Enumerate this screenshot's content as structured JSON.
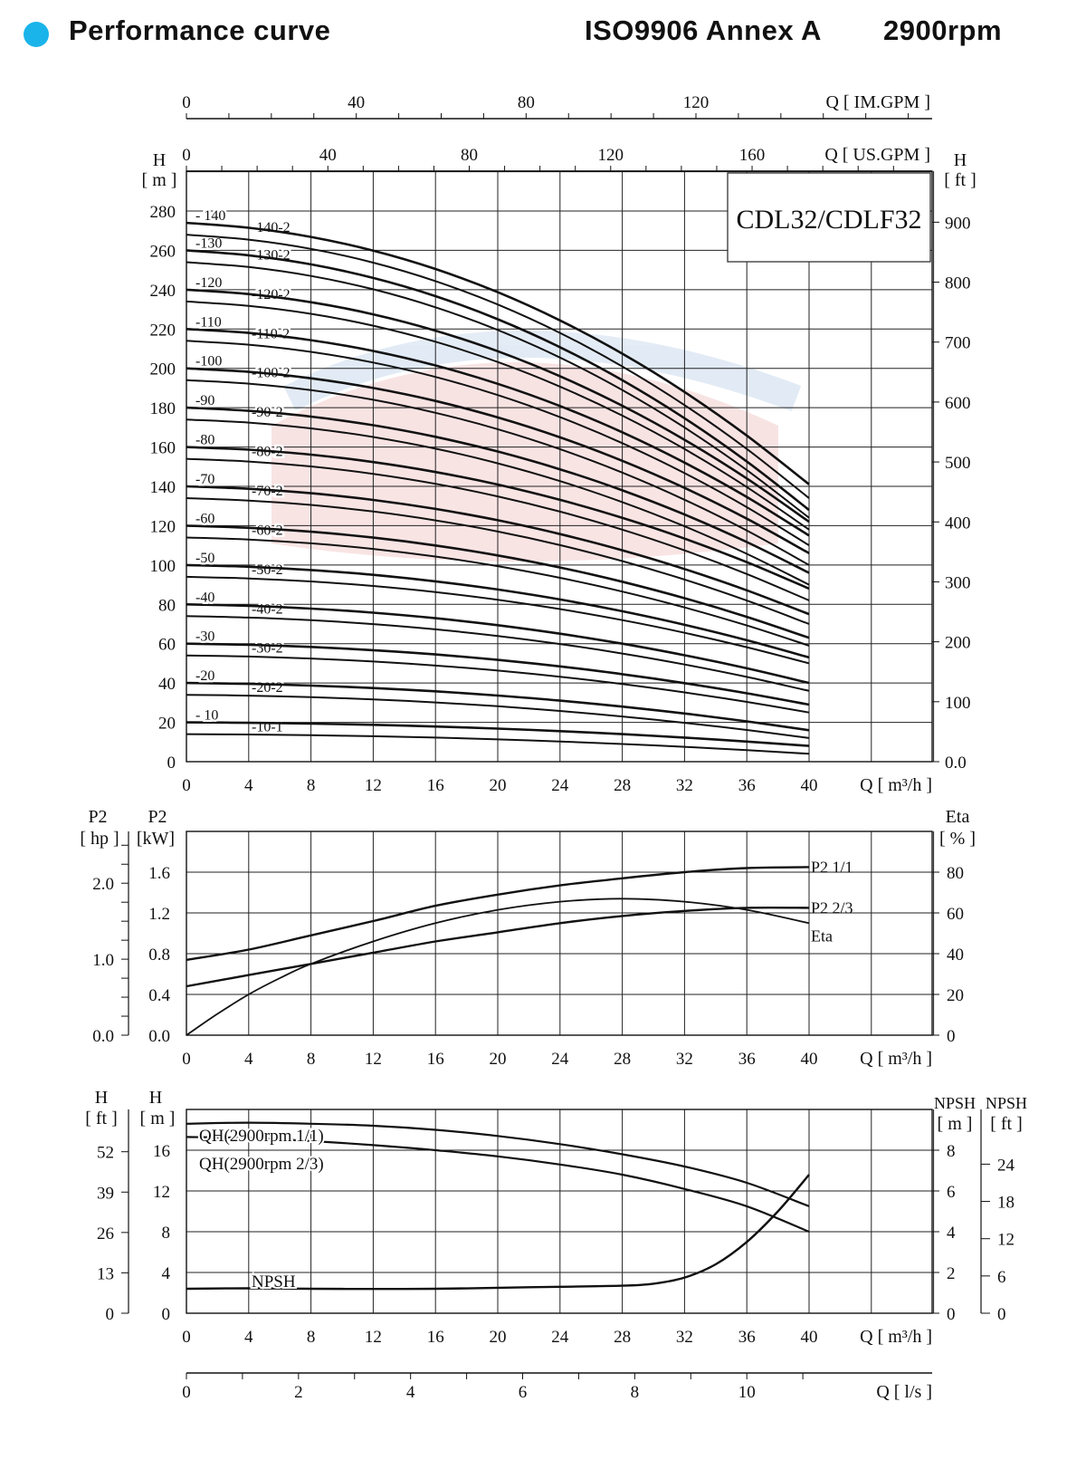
{
  "header": {
    "title": "Performance curve",
    "standard": "ISO9906 Annex A",
    "speed": "2900rpm",
    "dot_color": "#1ab4ea"
  },
  "model": "CDL32/CDLF32",
  "chart_data": [
    {
      "id": "head",
      "type": "line",
      "xlabel": "Q [ m³/h ]",
      "xlim": [
        0,
        40
      ],
      "x_ticks": [
        0,
        4,
        8,
        12,
        16,
        20,
        24,
        28,
        32,
        36,
        40
      ],
      "ylabel": "H [ m ]",
      "ylim": [
        0,
        280
      ],
      "y_ticks": [
        0,
        20,
        40,
        60,
        80,
        100,
        120,
        140,
        160,
        180,
        200,
        220,
        240,
        260,
        280
      ],
      "y_right_label": "H [ ft ]",
      "y_right_ticks": [
        "0.0",
        "100",
        "200",
        "300",
        "400",
        "500",
        "600",
        "700",
        "800",
        "900"
      ],
      "top_axis_us": {
        "label": "Q [ US.GPM ]",
        "ticks": [
          "0",
          "40",
          "80",
          "120",
          "160"
        ]
      },
      "top_axis_im": {
        "label": "Q [ IM.GPM ]",
        "ticks": [
          "0",
          "40",
          "80",
          "120"
        ]
      },
      "x": [
        0,
        4,
        8,
        12,
        16,
        20,
        24,
        28,
        32,
        36,
        40
      ],
      "curves": [
        {
          "label": "-10-1",
          "h0": 14,
          "h40": 4
        },
        {
          "label": "- 10",
          "h0": 20,
          "h40": 8
        },
        {
          "label": "-20-2",
          "h0": 34,
          "h40": 12
        },
        {
          "label": "-20",
          "h0": 40,
          "h40": 16
        },
        {
          "label": "-30-2",
          "h0": 54,
          "h40": 25
        },
        {
          "label": "-30",
          "h0": 60,
          "h40": 29
        },
        {
          "label": "-40-2",
          "h0": 74,
          "h40": 36
        },
        {
          "label": "-40",
          "h0": 80,
          "h40": 40
        },
        {
          "label": "-50-2",
          "h0": 94,
          "h40": 50
        },
        {
          "label": "-50",
          "h0": 100,
          "h40": 53
        },
        {
          "label": "-60-2",
          "h0": 114,
          "h40": 59
        },
        {
          "label": "-60",
          "h0": 120,
          "h40": 63
        },
        {
          "label": "-70-2",
          "h0": 134,
          "h40": 70
        },
        {
          "label": "-70",
          "h0": 140,
          "h40": 75
        },
        {
          "label": "-80-2",
          "h0": 154,
          "h40": 82
        },
        {
          "label": "-80",
          "h0": 160,
          "h40": 88
        },
        {
          "label": "-90-2",
          "h0": 174,
          "h40": 90
        },
        {
          "label": "-90",
          "h0": 180,
          "h40": 96
        },
        {
          "label": "-100-2",
          "h0": 194,
          "h40": 100
        },
        {
          "label": "-100",
          "h0": 200,
          "h40": 106
        },
        {
          "label": "-110-2",
          "h0": 214,
          "h40": 110
        },
        {
          "label": "-110",
          "h0": 220,
          "h40": 115
        },
        {
          "label": "-120-2",
          "h0": 234,
          "h40": 118
        },
        {
          "label": "-120",
          "h0": 240,
          "h40": 122
        },
        {
          "label": "-130-2",
          "h0": 254,
          "h40": 124
        },
        {
          "label": "-130",
          "h0": 260,
          "h40": 128
        },
        {
          "label": "-140-2",
          "h0": 268,
          "h40": 134
        },
        {
          "label": "- 140",
          "h0": 274,
          "h40": 141
        }
      ]
    },
    {
      "id": "power",
      "type": "line",
      "xlabel": "Q [ m³/h ]",
      "xlim": [
        0,
        40
      ],
      "x_ticks": [
        0,
        4,
        8,
        12,
        16,
        20,
        24,
        28,
        32,
        36,
        40
      ],
      "ylabel": "P2 [kW]",
      "ylim": [
        0,
        2.0
      ],
      "y_ticks": [
        "0.0",
        "0.4",
        "0.8",
        "1.2",
        "1.6"
      ],
      "y_hp_label": "P2 [ hp ]",
      "y_hp_ticks": [
        "0.0",
        "1.0",
        "2.0"
      ],
      "y_right_label": "Eta [ % ]",
      "y_right_ticks": [
        "0",
        "20",
        "40",
        "60",
        "80"
      ],
      "series": [
        {
          "name": "P2  1/1",
          "x": [
            0,
            4,
            8,
            12,
            16,
            20,
            24,
            28,
            32,
            36,
            40
          ],
          "values": [
            0.74,
            0.84,
            0.98,
            1.12,
            1.27,
            1.38,
            1.47,
            1.54,
            1.6,
            1.64,
            1.65
          ]
        },
        {
          "name": "P2  2/3",
          "x": [
            0,
            4,
            8,
            12,
            16,
            20,
            24,
            28,
            32,
            36,
            40
          ],
          "values": [
            0.48,
            0.59,
            0.7,
            0.81,
            0.92,
            1.01,
            1.1,
            1.17,
            1.22,
            1.25,
            1.25
          ]
        },
        {
          "name": "Eta",
          "x": [
            0,
            2,
            4,
            6,
            8,
            12,
            16,
            20,
            24,
            28,
            32,
            36,
            40
          ],
          "values": [
            0,
            10.5,
            20,
            28,
            35,
            46,
            55,
            61.5,
            65.5,
            67,
            65.5,
            61.5,
            55
          ]
        }
      ]
    },
    {
      "id": "npsh",
      "type": "line",
      "xlabel": "Q [ m³/h ]",
      "xlim": [
        0,
        40
      ],
      "x_ticks": [
        0,
        4,
        8,
        12,
        16,
        20,
        24,
        28,
        32,
        36,
        40
      ],
      "x2_label": "Q [ l/s ]",
      "x2_ticks": [
        "0",
        "2",
        "4",
        "6",
        "8",
        "10"
      ],
      "ylabel": "H [ m ]",
      "ylim": [
        0,
        20
      ],
      "y_ticks": [
        0,
        4,
        8,
        12,
        16
      ],
      "y_ft_label": "H [ ft ]",
      "y_ft_ticks": [
        "0",
        "13",
        "26",
        "39",
        "52"
      ],
      "y_right_label": "NPSH [ m ]",
      "y_right_ticks": [
        "0",
        "2",
        "4",
        "6",
        "8"
      ],
      "y_right2_label": "NPSH [ ft ]",
      "y_right2_ticks": [
        "0",
        "6",
        "12",
        "18",
        "24"
      ],
      "series": [
        {
          "name": "QH(2900rpm 1/1)",
          "x": [
            0,
            4,
            8,
            12,
            16,
            20,
            24,
            28,
            32,
            36,
            40
          ],
          "values": [
            18.6,
            18.7,
            18.6,
            18.4,
            18.0,
            17.4,
            16.6,
            15.6,
            14.4,
            12.8,
            10.5
          ]
        },
        {
          "name": "QH(2900rpm 2/3)",
          "x": [
            0,
            4,
            8,
            12,
            16,
            20,
            24,
            28,
            32,
            36,
            40
          ],
          "values": [
            17.3,
            17.2,
            16.9,
            16.5,
            16.0,
            15.4,
            14.6,
            13.6,
            12.2,
            10.5,
            8.0
          ]
        },
        {
          "name": "NPSH",
          "x": [
            0,
            4,
            8,
            12,
            16,
            20,
            24,
            28,
            30,
            32,
            34,
            36,
            38,
            40
          ],
          "values": [
            1.2,
            1.22,
            1.2,
            1.19,
            1.2,
            1.25,
            1.3,
            1.35,
            1.45,
            1.75,
            2.4,
            3.5,
            5.0,
            6.8
          ]
        }
      ]
    }
  ]
}
